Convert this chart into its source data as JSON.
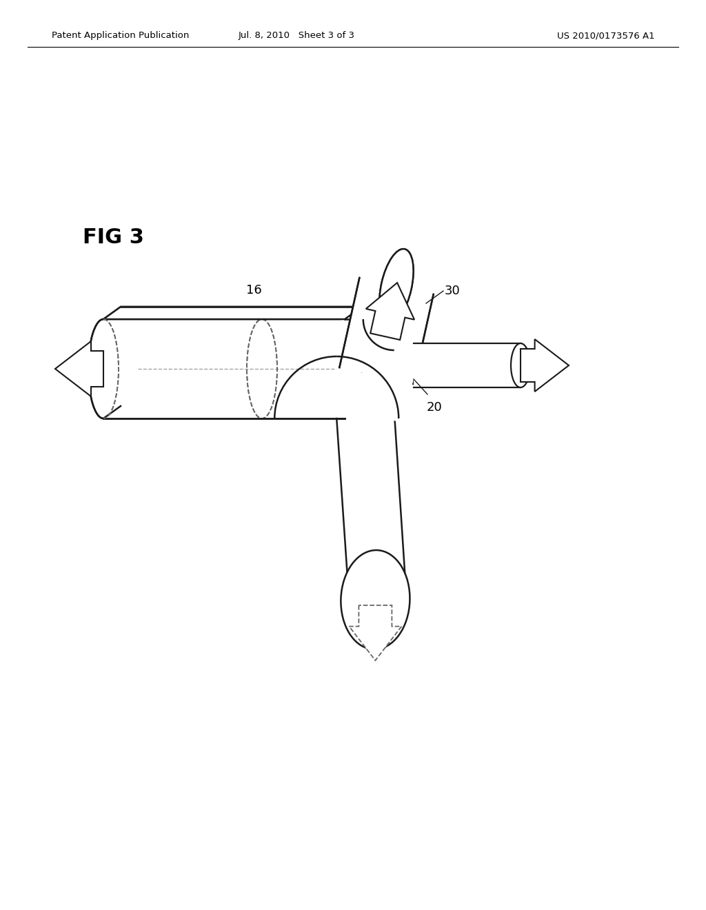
{
  "header_left": "Patent Application Publication",
  "header_center": "Jul. 8, 2010   Sheet 3 of 3",
  "header_right": "US 2010/0173576 A1",
  "fig_label": "FIG 3",
  "label_16": "16",
  "label_20": "20",
  "label_30": "30",
  "line_color": "#1a1a1a",
  "dash_color": "#666666",
  "bg_color": "#ffffff",
  "figsize": [
    10.24,
    13.2
  ],
  "dpi": 100
}
